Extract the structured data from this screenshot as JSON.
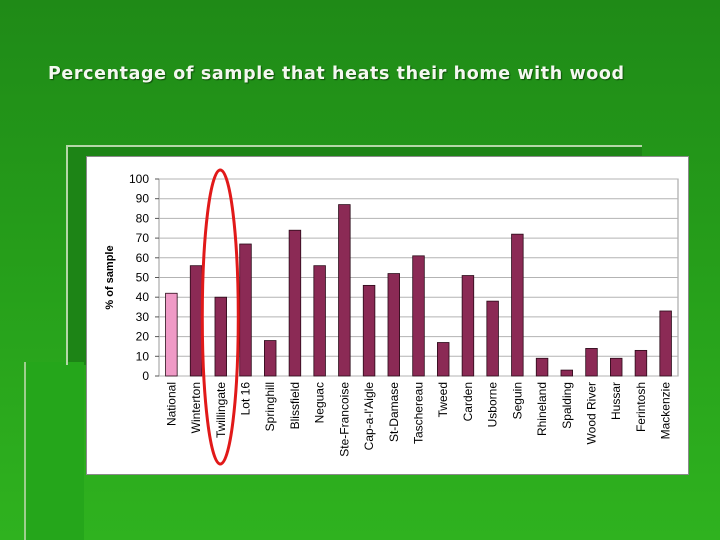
{
  "slide": {
    "title": "Percentage of sample that heats their home with wood"
  },
  "colors": {
    "background": "#27a11b",
    "bar": "#8b2a55",
    "bar_highlight": "#ef9ac6",
    "circle": "#e11919"
  },
  "chart_data": {
    "type": "bar",
    "title": "",
    "xlabel": "",
    "ylabel": "% of sample",
    "ylim": [
      0,
      100
    ],
    "yticks": [
      0,
      10,
      20,
      30,
      40,
      50,
      60,
      70,
      80,
      90,
      100
    ],
    "grid": "horizontal",
    "legend": "none",
    "categories": [
      "National",
      "Winterton",
      "Twillingate",
      "Lot 16",
      "Springhill",
      "Blissfield",
      "Neguac",
      "Ste-Francoise",
      "Cap-a-l'Aigle",
      "St-Damase",
      "Taschereau",
      "Tweed",
      "Carden",
      "Usborne",
      "Seguin",
      "Rhineland",
      "Spalding",
      "Wood River",
      "Hussar",
      "Ferintosh",
      "Mackenzie"
    ],
    "values": [
      42,
      56,
      40,
      67,
      18,
      74,
      56,
      87,
      46,
      52,
      61,
      17,
      51,
      38,
      72,
      9,
      3,
      14,
      9,
      13,
      33
    ],
    "highlighted_category": "National",
    "annotation": "red ellipse circling Twillingate"
  }
}
